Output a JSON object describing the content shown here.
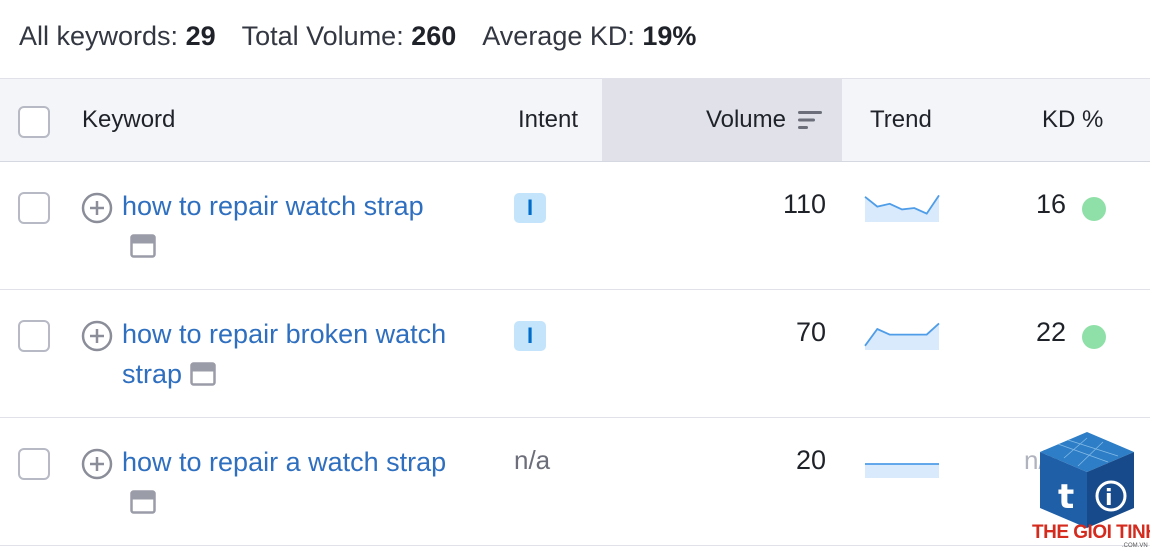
{
  "summary": {
    "all_keywords_label": "All keywords:",
    "all_keywords_value": "29",
    "total_volume_label": "Total Volume:",
    "total_volume_value": "260",
    "avg_kd_label": "Average KD:",
    "avg_kd_value": "19%"
  },
  "columns": {
    "keyword": "Keyword",
    "intent": "Intent",
    "volume": "Volume",
    "trend": "Trend",
    "kd": "KD %"
  },
  "rows": [
    {
      "keyword": "how to repair watch strap",
      "intent": "I",
      "volume": "110",
      "kd": "16",
      "kd_color": "#8fe0a8",
      "trend": [
        0.9,
        0.55,
        0.65,
        0.45,
        0.5,
        0.3,
        0.95
      ]
    },
    {
      "keyword": "how to repair broken watch strap",
      "intent": "I",
      "volume": "70",
      "kd": "22",
      "kd_color": "#8fe0a8",
      "trend": [
        0.15,
        0.75,
        0.55,
        0.55,
        0.55,
        0.55,
        0.95
      ]
    },
    {
      "keyword": "how to repair a watch strap",
      "intent": "n/a",
      "volume": "20",
      "kd": "n/a",
      "trend": [
        0.5,
        0.5,
        0.5,
        0.5,
        0.5,
        0.5,
        0.5
      ]
    }
  ],
  "watermark": {
    "brand": "THE GIOI TINHOC",
    "domain": ".COM.VN"
  },
  "colors": {
    "link": "#2f6fbf",
    "intent_bg": "#c4e4fb",
    "intent_fg": "#006dca",
    "trend_line": "#4f9de8",
    "trend_fill": "#d8eafc",
    "kd_easy": "#8fe0a8"
  }
}
